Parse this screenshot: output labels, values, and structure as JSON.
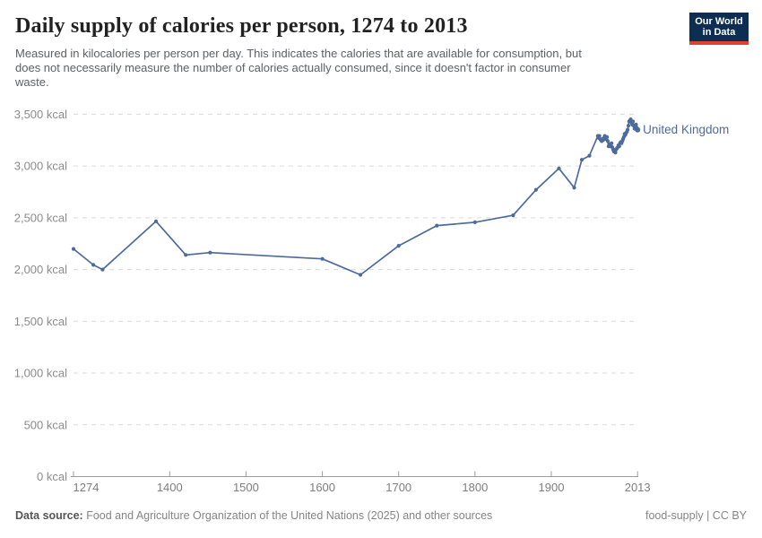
{
  "header": {
    "title": "Daily supply of calories per person, 1274 to 2013",
    "subtitle_lines": [
      "Measured in kilocalories per person per day. This indicates the calories that are available for consumption, but",
      "does not necessarily measure the number of calories actually consumed, since it doesn't factor in consumer",
      "waste."
    ],
    "logo": {
      "line1": "Our World",
      "line2": "in Data"
    }
  },
  "footer": {
    "source_label": "Data source:",
    "source_text": "Food and Agriculture Organization of the United Nations (2025) and other sources",
    "right_text": "food-supply | CC BY"
  },
  "colors": {
    "line": "#4C6A9C",
    "entity_label": "#4C6A9C",
    "grid": "#DADADA",
    "axis": "#9E9E9E",
    "y_tick_label": "#8C8C8C",
    "x_tick_label": "#7E7E7E",
    "logo_navy": "#0D2E52",
    "logo_red": "#E0422E"
  },
  "chart_data": {
    "type": "line",
    "title": "Daily supply of calories per person, 1274 to 2013",
    "xlabel": "",
    "ylabel": "",
    "unit": "kcal",
    "xlim": [
      1274,
      2013
    ],
    "ylim": [
      0,
      3500
    ],
    "xticks": [
      1274,
      1400,
      1500,
      1600,
      1700,
      1800,
      1900,
      2013
    ],
    "yticks": [
      0,
      500,
      1000,
      1500,
      2000,
      2500,
      3000,
      3500
    ],
    "ytick_suffix": " kcal",
    "grid": "horizontal-dashed",
    "legend_position": "end-of-line-label",
    "series": [
      {
        "name": "United Kingdom",
        "points": [
          [
            1274,
            2199
          ],
          [
            1300,
            2045
          ],
          [
            1312,
            2000
          ],
          [
            1382,
            2466
          ],
          [
            1421,
            2141
          ],
          [
            1453,
            2163
          ],
          [
            1600,
            2103
          ],
          [
            1650,
            1949
          ],
          [
            1700,
            2229
          ],
          [
            1750,
            2424
          ],
          [
            1800,
            2456
          ],
          [
            1850,
            2524
          ],
          [
            1880,
            2770
          ],
          [
            1910,
            2977
          ],
          [
            1930,
            2790
          ],
          [
            1940,
            3060
          ],
          [
            1950,
            3100
          ],
          [
            1961,
            3290
          ],
          [
            1962,
            3270
          ],
          [
            1963,
            3290
          ],
          [
            1964,
            3260
          ],
          [
            1965,
            3250
          ],
          [
            1966,
            3240
          ],
          [
            1967,
            3260
          ],
          [
            1968,
            3250
          ],
          [
            1969,
            3270
          ],
          [
            1970,
            3290
          ],
          [
            1971,
            3280
          ],
          [
            1972,
            3260
          ],
          [
            1973,
            3280
          ],
          [
            1974,
            3240
          ],
          [
            1975,
            3190
          ],
          [
            1976,
            3210
          ],
          [
            1977,
            3190
          ],
          [
            1978,
            3200
          ],
          [
            1979,
            3220
          ],
          [
            1980,
            3180
          ],
          [
            1981,
            3160
          ],
          [
            1982,
            3140
          ],
          [
            1983,
            3150
          ],
          [
            1984,
            3130
          ],
          [
            1985,
            3160
          ],
          [
            1986,
            3170
          ],
          [
            1987,
            3180
          ],
          [
            1988,
            3200
          ],
          [
            1989,
            3190
          ],
          [
            1990,
            3220
          ],
          [
            1991,
            3230
          ],
          [
            1992,
            3220
          ],
          [
            1993,
            3240
          ],
          [
            1994,
            3260
          ],
          [
            1995,
            3280
          ],
          [
            1996,
            3310
          ],
          [
            1997,
            3300
          ],
          [
            1998,
            3320
          ],
          [
            1999,
            3330
          ],
          [
            2000,
            3350
          ],
          [
            2001,
            3390
          ],
          [
            2002,
            3430
          ],
          [
            2003,
            3440
          ],
          [
            2004,
            3450
          ],
          [
            2005,
            3420
          ],
          [
            2006,
            3400
          ],
          [
            2007,
            3430
          ],
          [
            2008,
            3390
          ],
          [
            2009,
            3360
          ],
          [
            2010,
            3380
          ],
          [
            2011,
            3400
          ],
          [
            2012,
            3370
          ],
          [
            2013,
            3350
          ]
        ]
      }
    ]
  }
}
